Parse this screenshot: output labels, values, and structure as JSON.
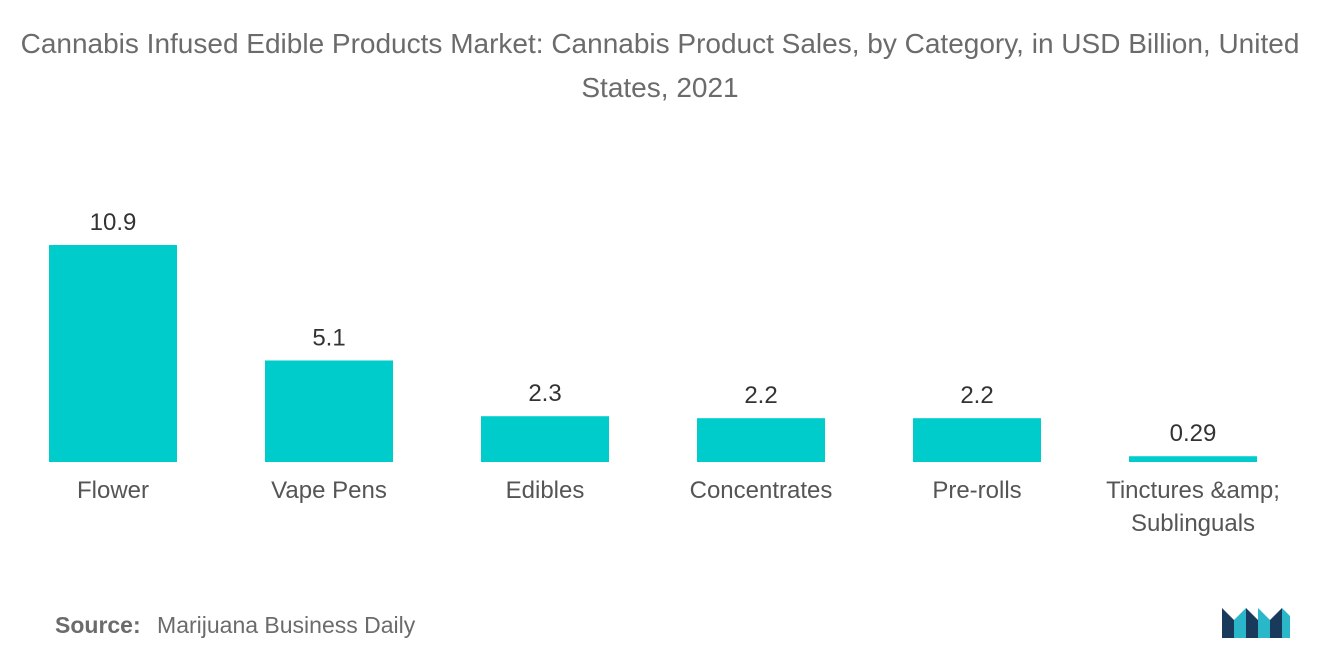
{
  "chart_data": {
    "type": "bar",
    "title": "Cannabis Infused Edible Products Market: Cannabis Product Sales, by Category, in USD Billion, United States, 2021",
    "categories": [
      "Flower",
      "Vape Pens",
      "Edibles",
      "Concentrates",
      "Pre-rolls",
      "Tinctures &amp; Sublinguals"
    ],
    "category_lines": [
      [
        "Flower"
      ],
      [
        "Vape Pens"
      ],
      [
        "Edibles"
      ],
      [
        "Concentrates"
      ],
      [
        "Pre-rolls"
      ],
      [
        "Tinctures &amp;",
        "Sublinguals"
      ]
    ],
    "values": [
      10.9,
      5.1,
      2.3,
      2.2,
      2.2,
      0.29
    ],
    "value_labels": [
      "10.9",
      "5.1",
      "2.3",
      "2.2",
      "2.2",
      "0.29"
    ],
    "xlabel": "",
    "ylabel": "",
    "ylim": [
      0,
      10.9
    ],
    "grid": false,
    "bar_color": "#00cccc"
  },
  "source": {
    "label": "Source:",
    "text": "Marijuana Business Daily"
  },
  "logo": {
    "icon": "mordor-intelligence-logo-icon",
    "colors": [
      "#1a3a5c",
      "#2ab7ca"
    ]
  }
}
